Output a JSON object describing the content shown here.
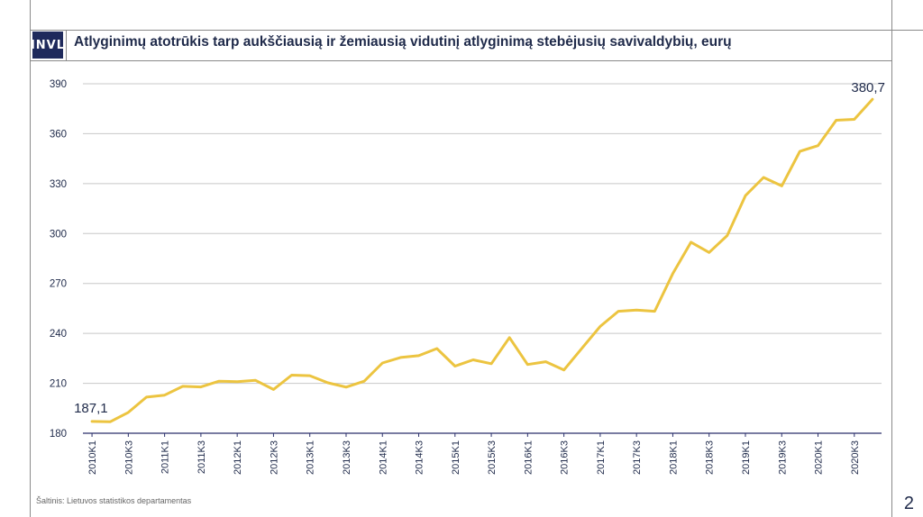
{
  "header": {
    "logo_text": "INVL",
    "title": "Atlyginimų atotrūkis tarp aukščiausią ir žemiausią vidutinį atlyginimą stebėjusių savivaldybių, eurų"
  },
  "footer": {
    "source": "Šaltinis: Lietuvos statistikos departamentas",
    "page_number": "2"
  },
  "chart_data": {
    "type": "line",
    "title": "Atlyginimų atotrūkis tarp aukščiausią ir žemiausią vidutinį atlyginimą stebėjusių savivaldybių, eurų",
    "xlabel": "",
    "ylabel": "",
    "ylim": [
      180,
      390
    ],
    "yticks": [
      180,
      210,
      240,
      270,
      300,
      330,
      360,
      390
    ],
    "grid": true,
    "legend": "none",
    "line_color": "#ecc440",
    "x": [
      "2010K1",
      "2010K2",
      "2010K3",
      "2010K4",
      "2011K1",
      "2011K2",
      "2011K3",
      "2011K4",
      "2012K1",
      "2012K2",
      "2012K3",
      "2012K4",
      "2013K1",
      "2013K2",
      "2013K3",
      "2013K4",
      "2014K1",
      "2014K2",
      "2014K3",
      "2014K4",
      "2015K1",
      "2015K2",
      "2015K3",
      "2015K4",
      "2016K1",
      "2016K2",
      "2016K3",
      "2016K4",
      "2017K1",
      "2017K2",
      "2017K3",
      "2017K4",
      "2018K1",
      "2018K2",
      "2018K3",
      "2018K4",
      "2019K1",
      "2019K2",
      "2019K3",
      "2019K4",
      "2020K1",
      "2020K2",
      "2020K3",
      "2020K4"
    ],
    "x_tick_labels": [
      "2010K1",
      "2010K3",
      "2011K1",
      "2011K3",
      "2012K1",
      "2012K3",
      "2013K1",
      "2013K3",
      "2014K1",
      "2014K3",
      "2015K1",
      "2015K3",
      "2016K1",
      "2016K3",
      "2017K1",
      "2017K3",
      "2018K1",
      "2018K3",
      "2019K1",
      "2019K3",
      "2020K1",
      "2020K3"
    ],
    "series": [
      {
        "values": [
          187.1,
          186.9,
          192.5,
          201.7,
          202.9,
          208.2,
          207.8,
          211.3,
          211.0,
          211.8,
          206.3,
          214.9,
          214.6,
          210.3,
          207.7,
          211.3,
          222.2,
          225.5,
          226.6,
          230.9,
          220.3,
          224.1,
          221.8,
          237.5,
          221.3,
          223.0,
          218.0,
          231.2,
          244.2,
          253.3,
          254.0,
          253.3,
          275.9,
          294.8,
          288.6,
          298.8,
          322.8,
          333.7,
          328.6,
          349.4,
          352.8,
          368.1,
          368.6,
          380.7
        ]
      }
    ],
    "data_labels": [
      {
        "text": "187,1"
      },
      {
        "text": "380,7"
      }
    ]
  }
}
